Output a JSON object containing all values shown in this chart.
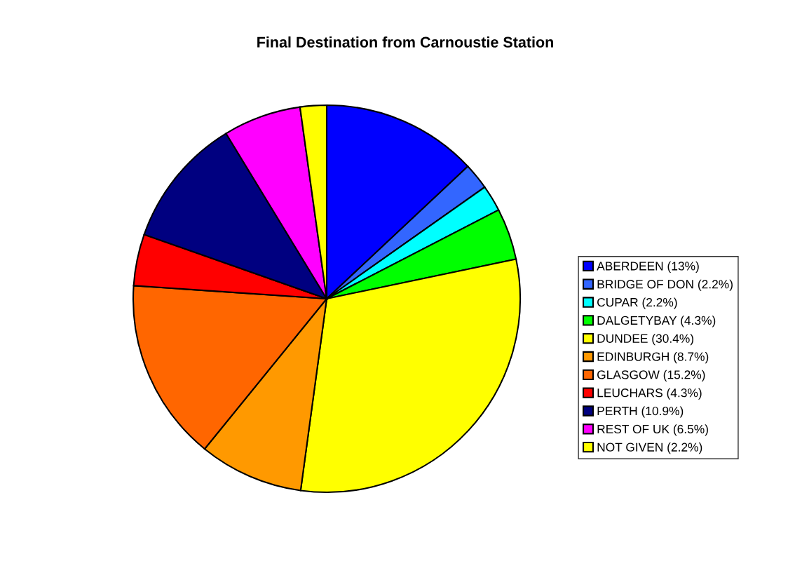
{
  "chart_data": {
    "type": "pie",
    "title": "Final Destination from Carnoustie Station",
    "categories": [
      "ABERDEEN (13%)",
      "BRIDGE OF DON (2.2%)",
      "CUPAR (2.2%)",
      "DALGETYBAY (4.3%)",
      "DUNDEE (30.4%)",
      "EDINBURGH (8.7%)",
      "GLASGOW (15.2%)",
      "LEUCHARS (4.3%)",
      "PERTH (10.9%)",
      "REST OF UK (6.5%)",
      "NOT GIVEN (2.2%)"
    ],
    "values": [
      13,
      2.2,
      2.2,
      4.3,
      30.4,
      8.7,
      15.2,
      4.3,
      10.9,
      6.5,
      2.2
    ],
    "colors": [
      "#0000ff",
      "#3366ff",
      "#00ffff",
      "#00ff00",
      "#ffff00",
      "#ff9900",
      "#ff6600",
      "#ff0000",
      "#000080",
      "#ff00ff",
      "#ffff00"
    ],
    "legend": "right"
  }
}
